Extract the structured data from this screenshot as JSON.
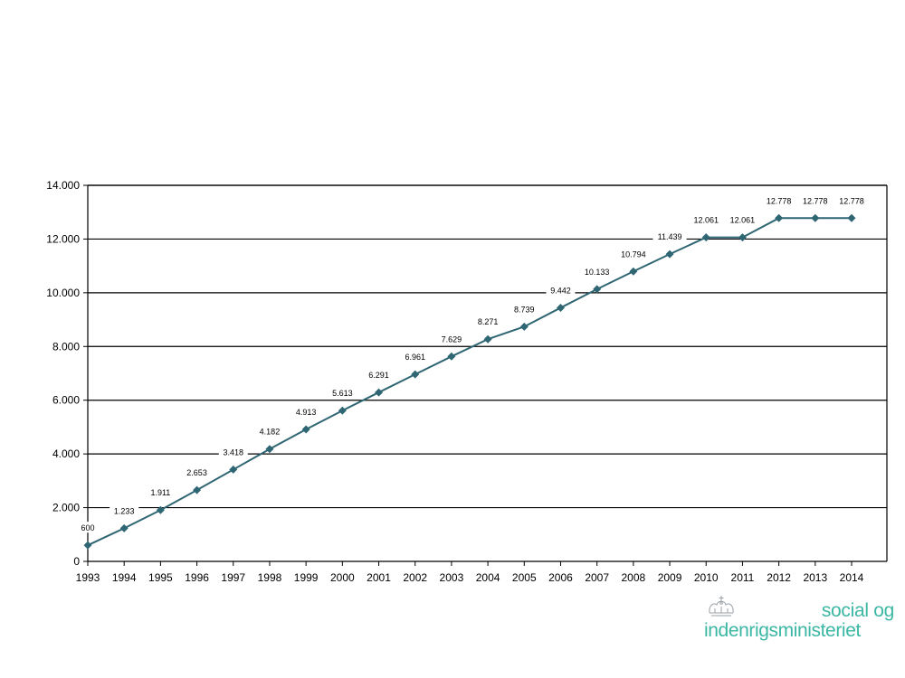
{
  "chart_data": {
    "type": "line",
    "title": "",
    "xlabel": "",
    "ylabel": "",
    "categories": [
      "1993",
      "1994",
      "1995",
      "1996",
      "1997",
      "1998",
      "1999",
      "2000",
      "2001",
      "2002",
      "2003",
      "2004",
      "2005",
      "2006",
      "2007",
      "2008",
      "2009",
      "2010",
      "2011",
      "2012",
      "2013",
      "2014"
    ],
    "series": [
      {
        "values": [
          600,
          1233,
          1911,
          2653,
          3418,
          4182,
          4913,
          5613,
          6291,
          6961,
          7629,
          8271,
          8739,
          9442,
          10133,
          10794,
          11439,
          12061,
          12061,
          12778,
          12778,
          12778
        ],
        "labels": [
          "600",
          "1.233",
          "1.911",
          "2.653",
          "3.418",
          "4.182",
          "4.913",
          "5.613",
          "6.291",
          "6.961",
          "7.629",
          "8.271",
          "8.739",
          "9.442",
          "10.133",
          "10.794",
          "11.439",
          "12.061",
          "12.061",
          "12.778",
          "12.778",
          "12.778"
        ]
      }
    ],
    "ylim": [
      0,
      14000
    ],
    "yticks": [
      0,
      2000,
      4000,
      6000,
      8000,
      10000,
      12000,
      14000
    ],
    "ytick_labels": [
      "0",
      "2.000",
      "4.000",
      "6.000",
      "8.000",
      "10.000",
      "12.000",
      "14.000"
    ],
    "grid": true,
    "line_color": "#2f6673",
    "marker": "diamond"
  },
  "logo": {
    "line1": "social og",
    "line2": "indenrigsministeriet",
    "color": "#3cb7a4",
    "emblem": "crown-icon"
  }
}
